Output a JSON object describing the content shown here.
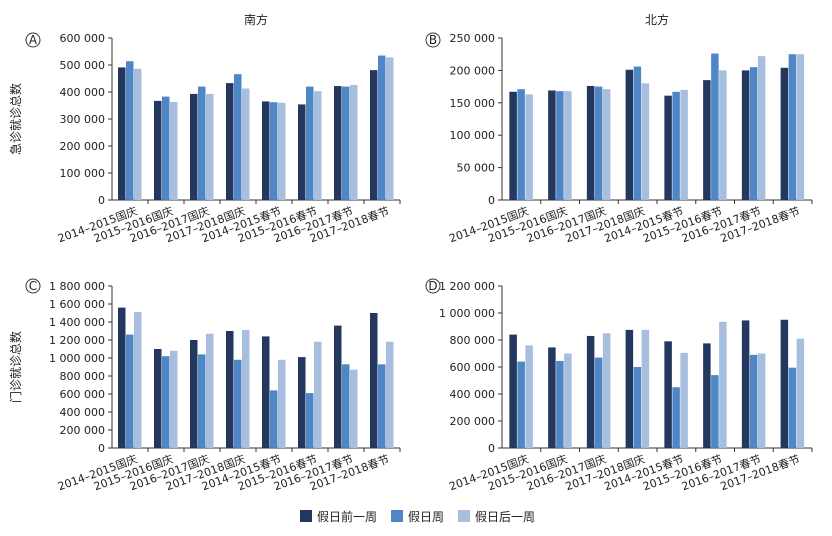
{
  "chart_data": [
    {
      "panel": "A",
      "type": "bar",
      "title": "南方",
      "ylabel": "急诊就诊总数",
      "ylim": [
        0,
        600000
      ],
      "yticks": [
        "0",
        "100 000",
        "200 000",
        "300 000",
        "400 000",
        "500 000",
        "600 000"
      ],
      "categories": [
        "2014–2015国庆",
        "2015–2016国庆",
        "2016–2017国庆",
        "2017–2018国庆",
        "2014–2015春节",
        "2015–2016春节",
        "2016–2017春节",
        "2017–2018春节"
      ],
      "series": [
        {
          "name": "假日前一周",
          "color": "#24375e",
          "values": [
            491000,
            367000,
            393000,
            433000,
            365000,
            354000,
            422000,
            481000
          ]
        },
        {
          "name": "假日周",
          "color": "#4f86c6",
          "values": [
            514000,
            383000,
            420000,
            466000,
            362000,
            420000,
            420000,
            535000
          ]
        },
        {
          "name": "假日后一周",
          "color": "#a8bede",
          "values": [
            486000,
            363000,
            393000,
            413000,
            360000,
            403000,
            426000,
            528000
          ]
        }
      ]
    },
    {
      "panel": "B",
      "type": "bar",
      "title": "北方",
      "ylabel": "",
      "ylim": [
        0,
        250000
      ],
      "yticks": [
        "0",
        "50 000",
        "100 000",
        "150 000",
        "200 000",
        "250 000"
      ],
      "categories": [
        "2014–2015国庆",
        "2015–2016国庆",
        "2016–2017国庆",
        "2017–2018国庆",
        "2014–2015春节",
        "2015–2016春节",
        "2016–2017春节",
        "2017–2018春节"
      ],
      "series": [
        {
          "name": "假日前一周",
          "color": "#24375e",
          "values": [
            167000,
            169000,
            176000,
            201000,
            161000,
            185000,
            200000,
            204000
          ]
        },
        {
          "name": "假日周",
          "color": "#4f86c6",
          "values": [
            171000,
            168000,
            175000,
            206000,
            167000,
            226000,
            205000,
            225000
          ]
        },
        {
          "name": "假日后一周",
          "color": "#a8bede",
          "values": [
            163000,
            168000,
            171000,
            180000,
            170000,
            200000,
            222000,
            225000
          ]
        }
      ]
    },
    {
      "panel": "C",
      "type": "bar",
      "title": "",
      "ylabel": "门诊就诊总数",
      "ylim": [
        0,
        1800000
      ],
      "yticks": [
        "0",
        "200 000",
        "400 000",
        "600 000",
        "800 000",
        "1 000 000",
        "1 200 000",
        "1 400 000",
        "1 600 000",
        "1 800 000"
      ],
      "categories": [
        "2014–2015国庆",
        "2015–2016国庆",
        "2016–2017国庆",
        "2017–2018国庆",
        "2014–2015春节",
        "2015–2016春节",
        "2016–2017春节",
        "2017–2018春节"
      ],
      "series": [
        {
          "name": "假日前一周",
          "color": "#24375e",
          "values": [
            1560000,
            1100000,
            1200000,
            1300000,
            1240000,
            1010000,
            1360000,
            1500000
          ]
        },
        {
          "name": "假日周",
          "color": "#4f86c6",
          "values": [
            1260000,
            1020000,
            1040000,
            980000,
            640000,
            610000,
            930000,
            930000
          ]
        },
        {
          "name": "假日后一周",
          "color": "#a8bede",
          "values": [
            1510000,
            1080000,
            1270000,
            1310000,
            980000,
            1180000,
            870000,
            1180000
          ]
        }
      ]
    },
    {
      "panel": "D",
      "type": "bar",
      "title": "",
      "ylabel": "",
      "ylim": [
        0,
        1200000
      ],
      "yticks": [
        "0",
        "200 000",
        "400 000",
        "600 000",
        "800 000",
        "1 000 000",
        "1 200 000"
      ],
      "categories": [
        "2014–2015国庆",
        "2015–2016国庆",
        "2016–2017国庆",
        "2017–2018国庆",
        "2014–2015春节",
        "2015–2016春节",
        "2016–2017春节",
        "2017–2018春节"
      ],
      "series": [
        {
          "name": "假日前一周",
          "color": "#24375e",
          "values": [
            840000,
            745000,
            830000,
            875000,
            790000,
            775000,
            945000,
            950000
          ]
        },
        {
          "name": "假日周",
          "color": "#4f86c6",
          "values": [
            640000,
            645000,
            670000,
            600000,
            450000,
            540000,
            690000,
            595000
          ]
        },
        {
          "name": "假日后一周",
          "color": "#a8bede",
          "values": [
            760000,
            700000,
            850000,
            875000,
            705000,
            935000,
            700000,
            810000
          ]
        }
      ]
    }
  ],
  "legend": [
    {
      "label": "假日前一周",
      "color": "#24375e"
    },
    {
      "label": "假日周",
      "color": "#4f86c6"
    },
    {
      "label": "假日后一周",
      "color": "#a8bede"
    }
  ]
}
